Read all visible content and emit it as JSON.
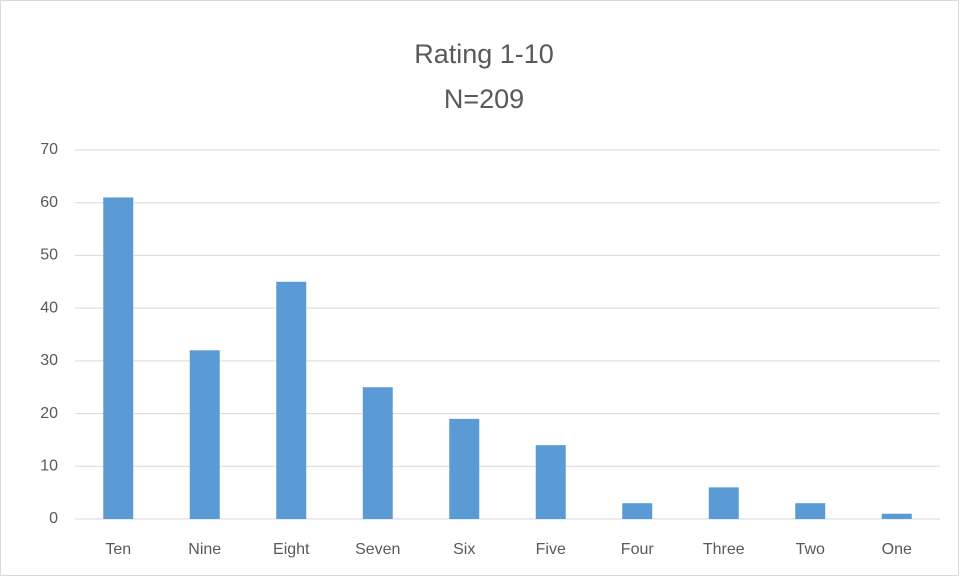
{
  "chart_data": {
    "type": "bar",
    "title": "Rating 1-10",
    "subtitle": "N=209",
    "categories": [
      "Ten",
      "Nine",
      "Eight",
      "Seven",
      "Six",
      "Five",
      "Four",
      "Three",
      "Two",
      "One"
    ],
    "values": [
      61,
      32,
      45,
      25,
      19,
      14,
      3,
      6,
      3,
      1
    ],
    "color": "#5b9bd5",
    "ylim": [
      0,
      70
    ],
    "yticks": [
      0,
      10,
      20,
      30,
      40,
      50,
      60,
      70
    ],
    "grid": true
  }
}
